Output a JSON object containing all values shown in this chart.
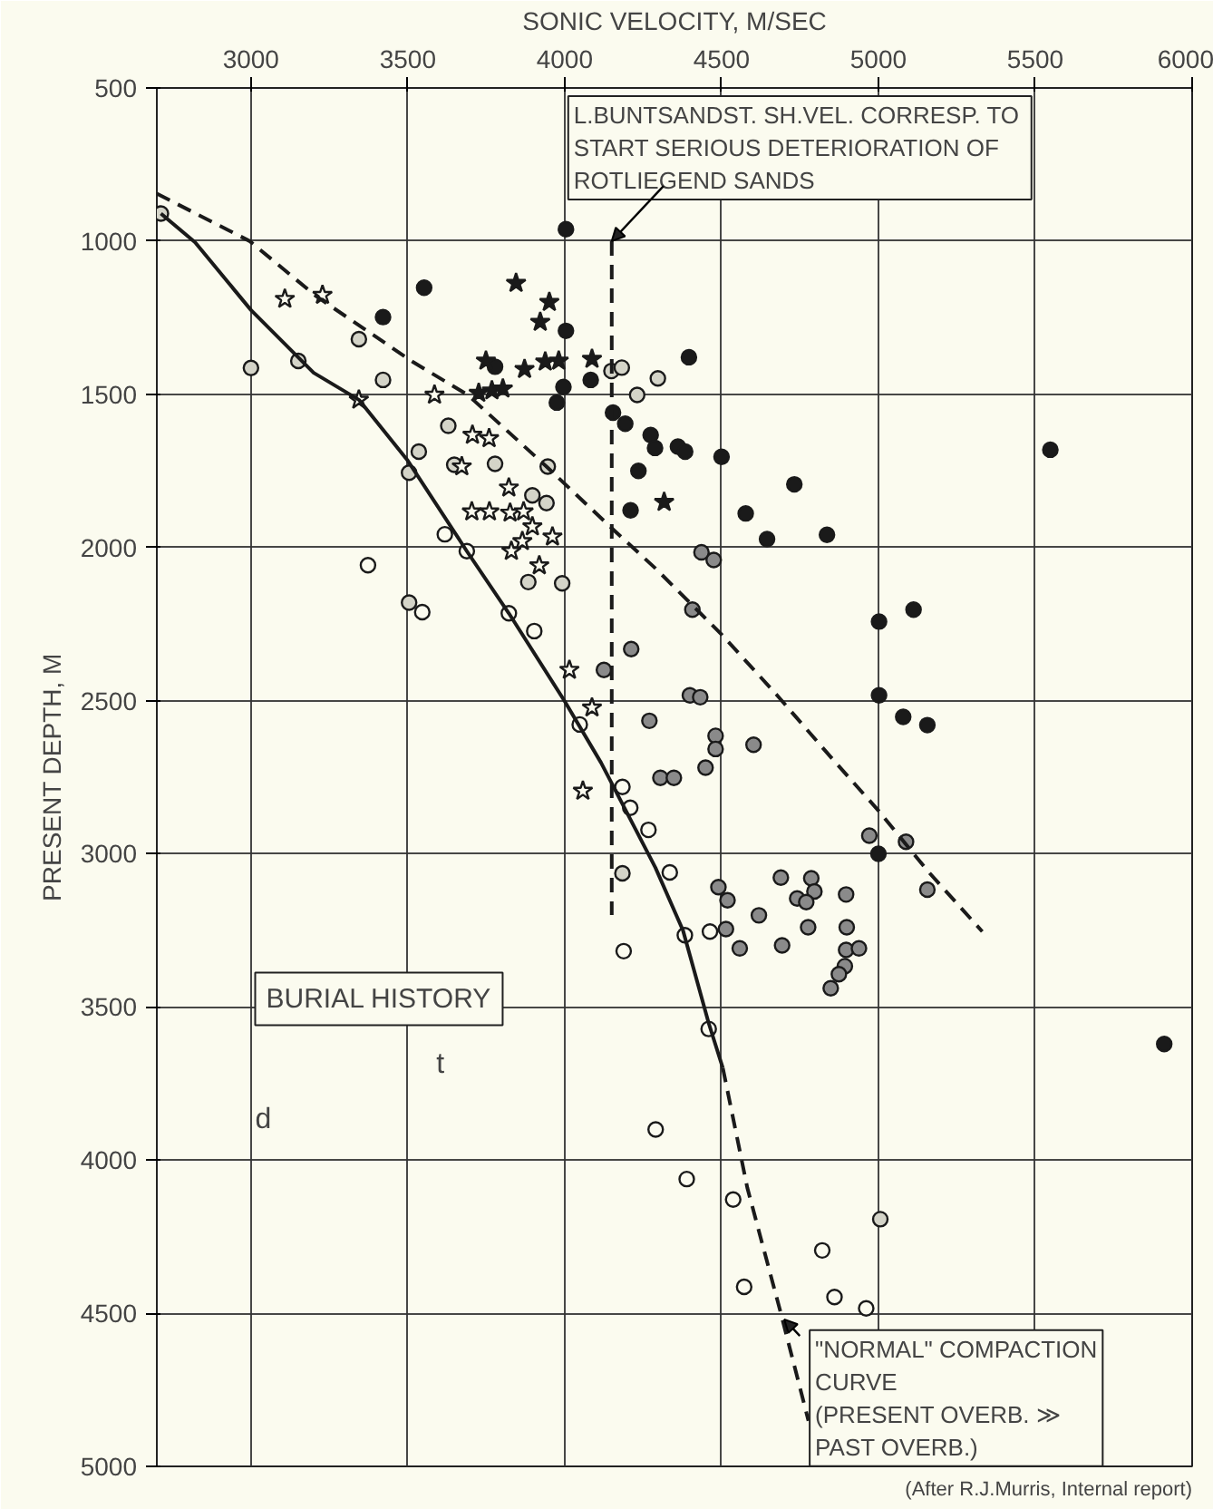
{
  "chart_data": {
    "type": "scatter",
    "xlabel": "SONIC VELOCITY, M/SEC",
    "ylabel": "PRESENT DEPTH, M",
    "xlim": [
      2700,
      6000
    ],
    "xticks": [
      3000,
      3500,
      4000,
      4500,
      5000,
      5500,
      6000
    ],
    "ylim": [
      5000,
      500
    ],
    "yticks": [
      500,
      1000,
      1500,
      2000,
      2500,
      3000,
      3500,
      4000,
      4500,
      5000
    ],
    "grid": true,
    "series": [
      {
        "marker": "circle",
        "color": "#fbfbef",
        "x": [
          3618,
          3688,
          3822,
          3903,
          4048,
          3373,
          3546,
          4184,
          4209,
          4267,
          4188,
          4335,
          4383,
          4463,
          4459,
          4290,
          4389,
          4537,
          4821,
          4572,
          4860,
          4961
        ],
        "values": [
          1957,
          2012,
          2215,
          2273,
          2578,
          2058,
          2211,
          2782,
          2850,
          2922,
          3318,
          3061,
          3266,
          3254,
          3572,
          3900,
          4062,
          4129,
          4295,
          4414,
          4447,
          4484
        ]
      },
      {
        "marker": "circle",
        "color": "#d4d4c8",
        "x": [
          2713,
          3151,
          3344,
          3421,
          3629,
          3535,
          3648,
          3778,
          3897,
          3946,
          3942,
          3884,
          3992,
          3000,
          3504,
          3504,
          4149,
          4182,
          4297,
          4184,
          5006,
          4231
        ],
        "values": [
          910,
          1391,
          1320,
          1453,
          1603,
          1687,
          1730,
          1727,
          1830,
          1736,
          1855,
          2113,
          2117,
          1414,
          2180,
          1756,
          1424,
          1413,
          1448,
          3064,
          4193,
          1502
        ]
      },
      {
        "marker": "circle",
        "color": "#8a8a8a",
        "x": [
          4212,
          4125,
          4270,
          4407,
          4399,
          4432,
          4481,
          4481,
          4602,
          4305,
          4348,
          4449,
          4971,
          5088,
          5156,
          4490,
          4519,
          4689,
          4786,
          4796,
          4741,
          4770,
          4897,
          4619,
          4776,
          4899,
          4514,
          4558,
          4693,
          4897,
          4938,
          4893,
          4874,
          4848,
          4436,
          4475
        ],
        "values": [
          2332,
          2400,
          2566,
          2203,
          2483,
          2489,
          2615,
          2658,
          2644,
          2752,
          2752,
          2719,
          2941,
          2961,
          3117,
          3109,
          3152,
          3078,
          3080,
          3123,
          3146,
          3158,
          3133,
          3201,
          3240,
          3240,
          3246,
          3309,
          3299,
          3314,
          3309,
          3367,
          3393,
          3439,
          2016,
          2041
        ]
      },
      {
        "marker": "circle",
        "color": "#1a1a1a",
        "x": [
          3552,
          3421,
          3778,
          4004,
          4004,
          3996,
          3975,
          4083,
          4154,
          4193,
          4274,
          4288,
          4235,
          4210,
          4396,
          4361,
          4384,
          4500,
          4732,
          4577,
          4645,
          4836,
          5002,
          5112,
          5002,
          5079,
          5156,
          5548,
          5000,
          5911
        ],
        "values": [
          1152,
          1248,
          1410,
          1293,
          961,
          1476,
          1527,
          1453,
          1560,
          1596,
          1633,
          1675,
          1750,
          1879,
          1379,
          1671,
          1687,
          1704,
          1794,
          1889,
          1973,
          1959,
          2242,
          2203,
          2483,
          2553,
          2580,
          1681,
          3000,
          3621
        ]
      },
      {
        "marker": "star",
        "color": "#fbfbef",
        "x": [
          3108,
          3228,
          3344,
          3585,
          3706,
          3759,
          3672,
          3822,
          3704,
          3760,
          3826,
          3869,
          3897,
          3961,
          3865,
          3830,
          3919,
          4015,
          4087,
          4058
        ],
        "values": [
          1189,
          1176,
          1518,
          1502,
          1633,
          1644,
          1736,
          1805,
          1883,
          1883,
          1887,
          1883,
          1932,
          1965,
          1980,
          2012,
          2059,
          2400,
          2523,
          2795
        ]
      },
      {
        "marker": "star",
        "color": "#1a1a1a",
        "x": [
          3845,
          3951,
          3922,
          3749,
          3872,
          3938,
          3981,
          4087,
          3726,
          3768,
          3803,
          4317
        ],
        "values": [
          1137,
          1199,
          1264,
          1391,
          1418,
          1394,
          1391,
          1385,
          1496,
          1488,
          1482,
          1852
        ]
      },
      {
        "type": "line",
        "line_style": "solid",
        "color": "#1a1a1a",
        "x": [
          2713,
          2822,
          3000,
          3200,
          3344,
          3500,
          3688,
          3822,
          4000,
          4116,
          4289,
          4377,
          4459,
          4504
        ],
        "values": [
          910,
          1004,
          1225,
          1430,
          1518,
          1717,
          2012,
          2215,
          2502,
          2703,
          3045,
          3250,
          3553,
          3699
        ]
      },
      {
        "type": "line",
        "line_style": "dashed",
        "color": "#1a1a1a",
        "x": [
          4504,
          4582,
          4689,
          4777
        ],
        "values": [
          3699,
          4090,
          4500,
          4851
        ]
      },
      {
        "type": "line",
        "line_style": "dashed",
        "color": "#1a1a1a",
        "x": [
          2700,
          2996,
          3208,
          3517,
          3691,
          3942,
          4154,
          4289,
          4500,
          4674,
          4847,
          5000,
          5156,
          5331
        ],
        "values": [
          845,
          1000,
          1180,
          1395,
          1502,
          1736,
          1941,
          2068,
          2284,
          2479,
          2683,
          2859,
          3055,
          3254
        ]
      },
      {
        "type": "line",
        "line_style": "dashed",
        "color": "#1a1a1a",
        "x": [
          4150,
          4150
        ],
        "values": [
          1000,
          3200
        ]
      }
    ],
    "annotations": [
      {
        "text": "L.BUNTSANDST.  SH.VEL. CORRESP. TO\nSTART SERIOUS DETERIORATION OF\nROTLIEGEND SANDS",
        "x": 4150,
        "y": 1000
      },
      {
        "text": "\"NORMAL\" COMPACTION\nCURVE\n(PRESENT OVERB. ≫\nPAST OVERB.)",
        "x": 4700,
        "y": 4520
      },
      "BURIAL HISTORY",
      "t",
      "d",
      "(After R.J.Murris, Internal report)"
    ]
  }
}
